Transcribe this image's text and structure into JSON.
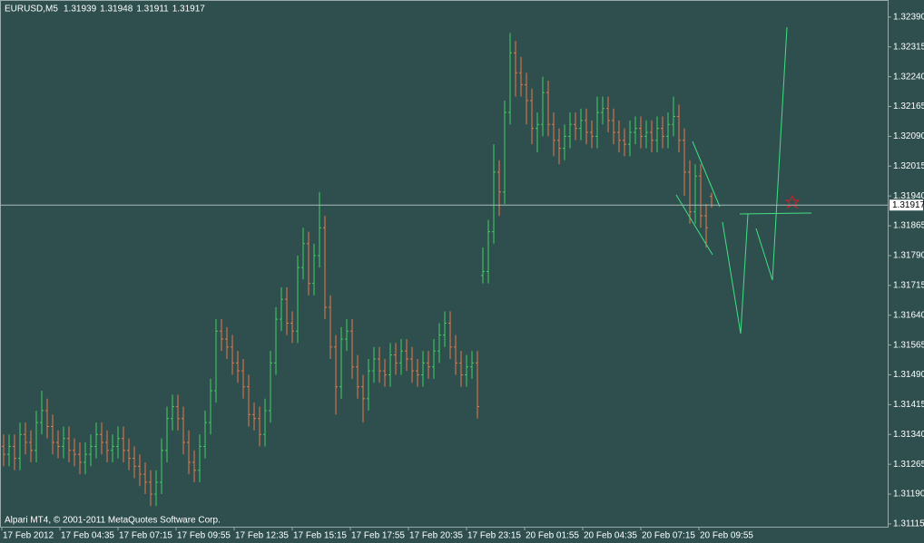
{
  "chart_data": {
    "type": "ohlc",
    "symbol": "EURUSD,M5",
    "quote": [
      1.31939,
      1.31948,
      1.31911,
      1.31917
    ],
    "copyright": "Alpari MT4, © 2001-2011 MetaQuotes Software Corp.",
    "current_price": 1.31917,
    "up_color": "#3cd060",
    "down_color": "#e8784c",
    "background": "#2f4f4f",
    "time_labels": [
      "17 Feb 2012",
      "17 Feb 04:35",
      "17 Feb 07:15",
      "17 Feb 09:55",
      "17 Feb 12:35",
      "17 Feb 15:15",
      "17 Feb 17:55",
      "17 Feb 20:35",
      "17 Feb 23:15",
      "20 Feb 01:55",
      "20 Feb 04:35",
      "20 Feb 07:15",
      "20 Feb 09:55"
    ],
    "ylim": [
      1.31108,
      1.32433
    ],
    "yticks": [
      {
        "value": 1.3239,
        "label": "1.32390"
      },
      {
        "value": 1.32315,
        "label": "1.32315"
      },
      {
        "value": 1.3224,
        "label": "1.32240"
      },
      {
        "value": 1.32165,
        "label": "1.32165"
      },
      {
        "value": 1.3209,
        "label": "1.32090"
      },
      {
        "value": 1.32015,
        "label": "1.32015"
      },
      {
        "value": 1.3194,
        "label": "1.31940"
      },
      {
        "value": 1.31865,
        "label": "1.31865"
      },
      {
        "value": 1.3179,
        "label": "1.31790"
      },
      {
        "value": 1.31715,
        "label": "1.31715"
      },
      {
        "value": 1.3164,
        "label": "1.31640"
      },
      {
        "value": 1.31565,
        "label": "1.31565"
      },
      {
        "value": 1.3149,
        "label": "1.31490"
      },
      {
        "value": 1.31415,
        "label": "1.31415"
      },
      {
        "value": 1.3134,
        "label": "1.31340"
      },
      {
        "value": 1.31265,
        "label": "1.31265"
      },
      {
        "value": 1.3119,
        "label": "1.31190"
      },
      {
        "value": 1.31115,
        "label": "1.31115"
      }
    ],
    "ohlc": [
      [
        1.3131,
        1.3134,
        1.3126,
        1.3129
      ],
      [
        1.3129,
        1.3134,
        1.3126,
        1.3131
      ],
      [
        1.3131,
        1.3134,
        1.3125,
        1.3128
      ],
      [
        1.3128,
        1.3137,
        1.3125,
        1.3134
      ],
      [
        1.3134,
        1.3137,
        1.3129,
        1.3132
      ],
      [
        1.3132,
        1.3135,
        1.3127,
        1.313
      ],
      [
        1.313,
        1.314,
        1.3127,
        1.3137
      ],
      [
        1.3137,
        1.3145,
        1.3134,
        1.314
      ],
      [
        1.314,
        1.3143,
        1.3133,
        1.3136
      ],
      [
        1.3136,
        1.3139,
        1.3129,
        1.3132
      ],
      [
        1.3132,
        1.3135,
        1.3128,
        1.3131
      ],
      [
        1.3131,
        1.3136,
        1.3128,
        1.3133
      ],
      [
        1.3133,
        1.3136,
        1.3127,
        1.313
      ],
      [
        1.313,
        1.3133,
        1.3126,
        1.3129
      ],
      [
        1.3129,
        1.3132,
        1.3124,
        1.3127
      ],
      [
        1.3127,
        1.3132,
        1.3124,
        1.3129
      ],
      [
        1.3129,
        1.3134,
        1.3126,
        1.3131
      ],
      [
        1.3131,
        1.3137,
        1.3128,
        1.3134
      ],
      [
        1.3134,
        1.3137,
        1.3129,
        1.3132
      ],
      [
        1.3132,
        1.3135,
        1.3127,
        1.313
      ],
      [
        1.313,
        1.3134,
        1.3127,
        1.3131
      ],
      [
        1.3131,
        1.3136,
        1.3128,
        1.3133
      ],
      [
        1.3133,
        1.3136,
        1.3127,
        1.313
      ],
      [
        1.313,
        1.3133,
        1.3125,
        1.3128
      ],
      [
        1.3128,
        1.3131,
        1.3123,
        1.3126
      ],
      [
        1.3126,
        1.3129,
        1.3121,
        1.3124
      ],
      [
        1.3124,
        1.3127,
        1.3119,
        1.3122
      ],
      [
        1.3122,
        1.3125,
        1.3116,
        1.3119
      ],
      [
        1.3119,
        1.3125,
        1.3116,
        1.3122
      ],
      [
        1.3122,
        1.3133,
        1.3119,
        1.313
      ],
      [
        1.313,
        1.3141,
        1.3127,
        1.3138
      ],
      [
        1.3138,
        1.3144,
        1.3135,
        1.3141
      ],
      [
        1.3141,
        1.3144,
        1.3135,
        1.3138
      ],
      [
        1.3138,
        1.3141,
        1.3129,
        1.3132
      ],
      [
        1.3132,
        1.3135,
        1.3124,
        1.3127
      ],
      [
        1.3127,
        1.313,
        1.3122,
        1.3125
      ],
      [
        1.3125,
        1.3134,
        1.3122,
        1.3131
      ],
      [
        1.3131,
        1.314,
        1.3128,
        1.3137
      ],
      [
        1.3137,
        1.3148,
        1.3134,
        1.3145
      ],
      [
        1.3145,
        1.3163,
        1.3142,
        1.316
      ],
      [
        1.316,
        1.3163,
        1.3155,
        1.3158
      ],
      [
        1.3158,
        1.3161,
        1.3153,
        1.3156
      ],
      [
        1.3156,
        1.3159,
        1.3149,
        1.3152
      ],
      [
        1.3152,
        1.3155,
        1.3147,
        1.315
      ],
      [
        1.315,
        1.3153,
        1.3143,
        1.3146
      ],
      [
        1.3146,
        1.3149,
        1.3136,
        1.3139
      ],
      [
        1.3139,
        1.3142,
        1.3135,
        1.3138
      ],
      [
        1.3138,
        1.3141,
        1.3131,
        1.3134
      ],
      [
        1.3134,
        1.3143,
        1.3131,
        1.314
      ],
      [
        1.314,
        1.3155,
        1.3137,
        1.3152
      ],
      [
        1.3152,
        1.3166,
        1.3149,
        1.3163
      ],
      [
        1.3163,
        1.3171,
        1.316,
        1.3168
      ],
      [
        1.3168,
        1.3171,
        1.3159,
        1.3162
      ],
      [
        1.3162,
        1.3165,
        1.3157,
        1.316
      ],
      [
        1.316,
        1.3179,
        1.3157,
        1.3176
      ],
      [
        1.3176,
        1.3186,
        1.3173,
        1.3182
      ],
      [
        1.3182,
        1.3185,
        1.3169,
        1.3172
      ],
      [
        1.3172,
        1.3182,
        1.3169,
        1.3179
      ],
      [
        1.3179,
        1.3195,
        1.3176,
        1.3186
      ],
      [
        1.3186,
        1.3189,
        1.3163,
        1.3166
      ],
      [
        1.3166,
        1.3169,
        1.3153,
        1.3156
      ],
      [
        1.3156,
        1.3159,
        1.3139,
        1.3146
      ],
      [
        1.3146,
        1.3161,
        1.3143,
        1.3158
      ],
      [
        1.3158,
        1.3163,
        1.3155,
        1.316
      ],
      [
        1.316,
        1.3163,
        1.3148,
        1.3151
      ],
      [
        1.3151,
        1.3154,
        1.3143,
        1.3146
      ],
      [
        1.3146,
        1.3149,
        1.3137,
        1.3143
      ],
      [
        1.3143,
        1.3153,
        1.314,
        1.315
      ],
      [
        1.315,
        1.3156,
        1.3147,
        1.3153
      ],
      [
        1.3153,
        1.3156,
        1.3147,
        1.315
      ],
      [
        1.315,
        1.3153,
        1.3146,
        1.3149
      ],
      [
        1.3149,
        1.3157,
        1.3146,
        1.3154
      ],
      [
        1.3154,
        1.3157,
        1.3149,
        1.3152
      ],
      [
        1.3152,
        1.3158,
        1.3149,
        1.3155
      ],
      [
        1.3155,
        1.3158,
        1.315,
        1.3153
      ],
      [
        1.3153,
        1.3156,
        1.3147,
        1.315
      ],
      [
        1.315,
        1.3153,
        1.3146,
        1.3149
      ],
      [
        1.3149,
        1.3155,
        1.3146,
        1.3152
      ],
      [
        1.3152,
        1.3155,
        1.3148,
        1.3151
      ],
      [
        1.3151,
        1.3158,
        1.3148,
        1.3155
      ],
      [
        1.3155,
        1.3162,
        1.3152,
        1.3159
      ],
      [
        1.3159,
        1.3165,
        1.3156,
        1.3162
      ],
      [
        1.3162,
        1.3165,
        1.3153,
        1.3156
      ],
      [
        1.3156,
        1.3159,
        1.3149,
        1.3152
      ],
      [
        1.3152,
        1.3155,
        1.3146,
        1.3149
      ],
      [
        1.3149,
        1.3154,
        1.3146,
        1.3151
      ],
      [
        1.3151,
        1.3155,
        1.3148,
        1.3152
      ],
      [
        1.3152,
        1.3155,
        1.3138,
        1.3141
      ],
      [
        1.3174,
        1.3181,
        1.3172,
        1.3175
      ],
      [
        1.3175,
        1.3188,
        1.3172,
        1.3185
      ],
      [
        1.3185,
        1.3207,
        1.3182,
        1.32
      ],
      [
        1.32,
        1.3203,
        1.3189,
        1.3195
      ],
      [
        1.3195,
        1.3218,
        1.3192,
        1.3215
      ],
      [
        1.3215,
        1.3235,
        1.3212,
        1.323
      ],
      [
        1.323,
        1.3233,
        1.3219,
        1.3225
      ],
      [
        1.3225,
        1.3229,
        1.3219,
        1.3222
      ],
      [
        1.3222,
        1.3225,
        1.3212,
        1.3218
      ],
      [
        1.3218,
        1.3221,
        1.3207,
        1.3211
      ],
      [
        1.3211,
        1.3215,
        1.3205,
        1.3212
      ],
      [
        1.3212,
        1.3224,
        1.3209,
        1.322
      ],
      [
        1.322,
        1.3223,
        1.3209,
        1.3212
      ],
      [
        1.3212,
        1.3215,
        1.3204,
        1.3208
      ],
      [
        1.3208,
        1.3211,
        1.3202,
        1.3206
      ],
      [
        1.3206,
        1.3212,
        1.3203,
        1.3209
      ],
      [
        1.3209,
        1.3215,
        1.3206,
        1.3212
      ],
      [
        1.3212,
        1.3215,
        1.3208,
        1.3211
      ],
      [
        1.3211,
        1.3216,
        1.3208,
        1.3213
      ],
      [
        1.3213,
        1.3216,
        1.3207,
        1.321
      ],
      [
        1.321,
        1.3213,
        1.3206,
        1.3209
      ],
      [
        1.3209,
        1.3219,
        1.3206,
        1.3215
      ],
      [
        1.3215,
        1.3219,
        1.3212,
        1.3216
      ],
      [
        1.3216,
        1.3219,
        1.321,
        1.3213
      ],
      [
        1.3213,
        1.3216,
        1.3207,
        1.321
      ],
      [
        1.321,
        1.3213,
        1.3205,
        1.3208
      ],
      [
        1.3208,
        1.3211,
        1.3204,
        1.3207
      ],
      [
        1.3207,
        1.3213,
        1.3204,
        1.321
      ],
      [
        1.321,
        1.3214,
        1.3207,
        1.3211
      ],
      [
        1.3211,
        1.3214,
        1.3206,
        1.3209
      ],
      [
        1.3209,
        1.3213,
        1.3206,
        1.321
      ],
      [
        1.321,
        1.3213,
        1.3205,
        1.3208
      ],
      [
        1.3208,
        1.3214,
        1.3205,
        1.3211
      ],
      [
        1.3211,
        1.3214,
        1.3206,
        1.3209
      ],
      [
        1.3209,
        1.3215,
        1.3206,
        1.3212
      ],
      [
        1.3212,
        1.3219,
        1.3209,
        1.3214
      ],
      [
        1.3214,
        1.3217,
        1.3205,
        1.3208
      ],
      [
        1.3208,
        1.3211,
        1.3194,
        1.32
      ],
      [
        1.32,
        1.3203,
        1.3187,
        1.319
      ],
      [
        1.319,
        1.3202,
        1.3187,
        1.3199
      ],
      [
        1.3199,
        1.3202,
        1.3186,
        1.3189
      ],
      [
        1.3189,
        1.3192,
        1.3181,
        1.3186
      ],
      [
        1.31939,
        1.31948,
        1.31911,
        1.31917
      ]
    ]
  }
}
